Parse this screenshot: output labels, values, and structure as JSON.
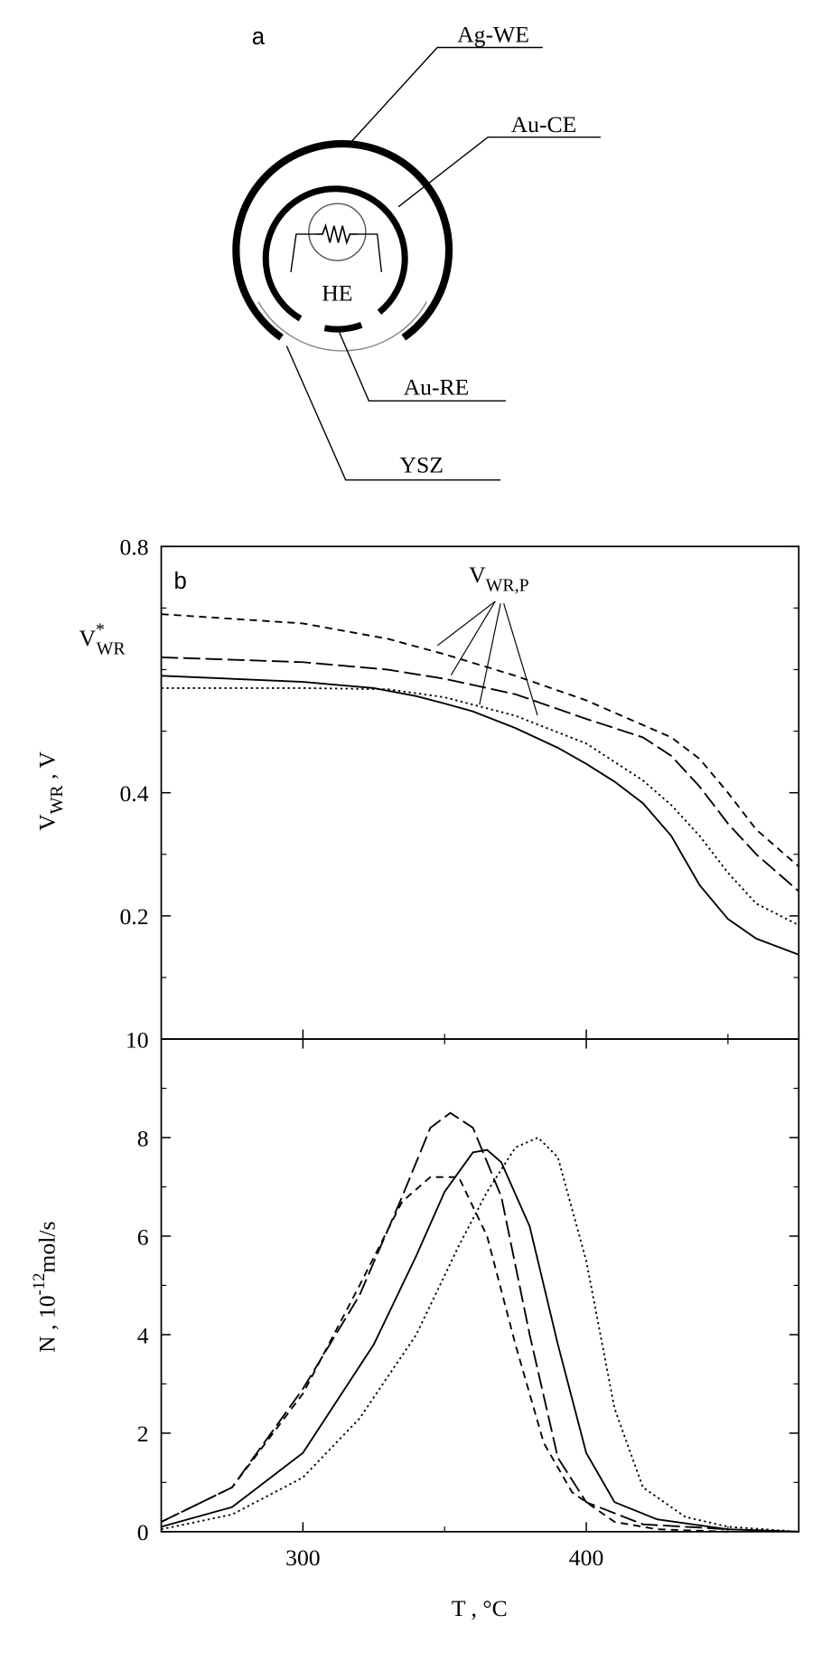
{
  "diagram": {
    "panel_label": "a",
    "labels": [
      "Ag-WE",
      "Au-CE",
      "HE",
      "Au-RE",
      "YSZ"
    ]
  },
  "chart_data": [
    {
      "type": "line",
      "panel_label": "b",
      "ylabel": {
        "main": "V",
        "sub": "WR",
        "tail": " , V"
      },
      "annotations": [
        {
          "main": "V",
          "sup": "*",
          "sub": "WR"
        },
        {
          "main": "V",
          "sub": "WR,P"
        }
      ],
      "xlim": [
        250,
        475
      ],
      "ylim": [
        0,
        0.8
      ],
      "yticks": [
        0.2,
        0.4,
        0.8
      ],
      "minor_yticks": [
        0.1,
        0.3,
        0.5,
        0.6,
        0.7
      ],
      "series": [
        {
          "color": "#000000",
          "linestyle": "solid",
          "x": [
            250,
            275,
            300,
            325,
            340,
            350,
            360,
            375,
            390,
            400,
            410,
            420,
            430,
            440,
            450,
            460,
            475
          ],
          "values": [
            0.59,
            0.585,
            0.58,
            0.57,
            0.557,
            0.545,
            0.532,
            0.505,
            0.473,
            0.447,
            0.418,
            0.383,
            0.33,
            0.25,
            0.195,
            0.163,
            0.137
          ]
        },
        {
          "color": "#000000",
          "linestyle": "dotted",
          "x": [
            250,
            275,
            300,
            330,
            350,
            375,
            400,
            420,
            430,
            440,
            450,
            460,
            475
          ],
          "values": [
            0.57,
            0.57,
            0.57,
            0.568,
            0.555,
            0.525,
            0.48,
            0.42,
            0.38,
            0.33,
            0.27,
            0.22,
            0.185
          ]
        },
        {
          "color": "#000000",
          "linestyle": "long-dash",
          "x": [
            250,
            300,
            330,
            350,
            375,
            400,
            420,
            430,
            440,
            450,
            460,
            475
          ],
          "values": [
            0.62,
            0.612,
            0.6,
            0.585,
            0.56,
            0.52,
            0.49,
            0.46,
            0.41,
            0.35,
            0.3,
            0.24
          ]
        },
        {
          "color": "#000000",
          "linestyle": "dashed",
          "x": [
            250,
            300,
            330,
            350,
            375,
            400,
            420,
            430,
            440,
            450,
            460,
            475
          ],
          "values": [
            0.69,
            0.675,
            0.65,
            0.625,
            0.59,
            0.55,
            0.51,
            0.49,
            0.455,
            0.4,
            0.34,
            0.28
          ]
        }
      ]
    },
    {
      "type": "line",
      "xlabel": "T , °C",
      "ylabel": {
        "main": "N , 10",
        "sup": "-12",
        "tail": "mol/s"
      },
      "xlim": [
        250,
        475
      ],
      "xticks": [
        300,
        400
      ],
      "minor_xticks": [
        350,
        450
      ],
      "ylim": [
        0,
        10
      ],
      "yticks": [
        0,
        2,
        4,
        6,
        8,
        10
      ],
      "minor_yticks": [
        1,
        3,
        5,
        7,
        9
      ],
      "series": [
        {
          "color": "#000000",
          "linestyle": "solid",
          "x": [
            250,
            275,
            300,
            325,
            340,
            350,
            360,
            365,
            370,
            380,
            390,
            400,
            410,
            425,
            450,
            475
          ],
          "values": [
            0.1,
            0.5,
            1.6,
            3.8,
            5.6,
            6.9,
            7.7,
            7.75,
            7.5,
            6.2,
            3.8,
            1.6,
            0.6,
            0.25,
            0.05,
            0
          ]
        },
        {
          "color": "#000000",
          "linestyle": "dotted",
          "x": [
            250,
            275,
            300,
            320,
            340,
            355,
            365,
            375,
            383,
            390,
            400,
            410,
            420,
            435,
            450,
            475
          ],
          "values": [
            0.05,
            0.35,
            1.1,
            2.3,
            4.0,
            5.8,
            6.9,
            7.8,
            8.0,
            7.6,
            5.5,
            2.5,
            0.9,
            0.3,
            0.1,
            0
          ]
        },
        {
          "color": "#000000",
          "linestyle": "long-dash",
          "x": [
            250,
            275,
            300,
            320,
            335,
            345,
            352,
            360,
            370,
            380,
            390,
            400,
            420,
            450
          ],
          "values": [
            0.2,
            0.9,
            2.9,
            4.8,
            6.8,
            8.2,
            8.5,
            8.2,
            6.8,
            4.0,
            1.5,
            0.6,
            0.15,
            0.05
          ]
        },
        {
          "color": "#000000",
          "linestyle": "dashed",
          "x": [
            250,
            275,
            300,
            320,
            335,
            345,
            355,
            365,
            375,
            385,
            395,
            410,
            425,
            450
          ],
          "values": [
            0.2,
            0.9,
            2.8,
            5.0,
            6.7,
            7.2,
            7.2,
            6.0,
            3.8,
            1.8,
            0.8,
            0.2,
            0.05,
            0
          ]
        }
      ]
    }
  ]
}
